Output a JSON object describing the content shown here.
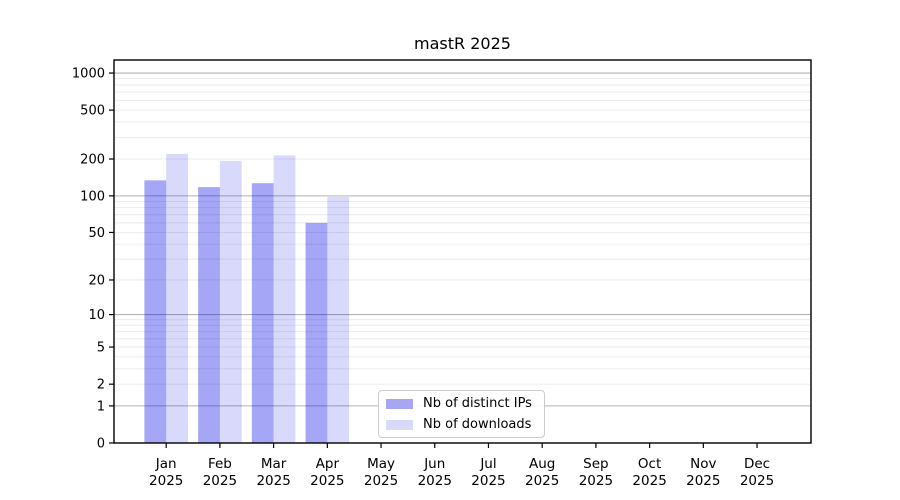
{
  "chart_data": {
    "type": "bar",
    "title": "mastR 2025",
    "y_scale": "log10(value+1)",
    "ylim": [
      0,
      1280
    ],
    "grid": true,
    "legend_position": "lower center",
    "y_ticks": [
      1000,
      500,
      200,
      100,
      50,
      20,
      10,
      5,
      2,
      1,
      0
    ],
    "y_major_gridlines": [
      1,
      10,
      100,
      1000
    ],
    "y_minor_gridlines": [
      2,
      3,
      4,
      5,
      6,
      7,
      8,
      9,
      20,
      30,
      40,
      50,
      60,
      70,
      80,
      90,
      200,
      300,
      400,
      500,
      600,
      700,
      800,
      900
    ],
    "x_tick_labels": [
      {
        "line1": "Jan",
        "line2": "2025"
      },
      {
        "line1": "Feb",
        "line2": "2025"
      },
      {
        "line1": "Mar",
        "line2": "2025"
      },
      {
        "line1": "Apr",
        "line2": "2025"
      },
      {
        "line1": "May",
        "line2": "2025"
      },
      {
        "line1": "Jun",
        "line2": "2025"
      },
      {
        "line1": "Jul",
        "line2": "2025"
      },
      {
        "line1": "Aug",
        "line2": "2025"
      },
      {
        "line1": "Sep",
        "line2": "2025"
      },
      {
        "line1": "Oct",
        "line2": "2025"
      },
      {
        "line1": "Nov",
        "line2": "2025"
      },
      {
        "line1": "Dec",
        "line2": "2025"
      }
    ],
    "series": [
      {
        "name": "Nb of distinct IPs",
        "slug": "distinct-ips",
        "fill": "rgba(0,0,230,0.35)",
        "legend_color": "#a6a6f4",
        "values": [
          134,
          118,
          127,
          60,
          null,
          null,
          null,
          null,
          null,
          null,
          null,
          null
        ]
      },
      {
        "name": "Nb of downloads",
        "slug": "downloads",
        "fill": "rgba(0,0,230,0.15)",
        "legend_color": "#d9d9fb",
        "values": [
          220,
          193,
          214,
          98,
          null,
          null,
          null,
          null,
          null,
          null,
          null,
          null
        ]
      }
    ],
    "colors": {
      "axis": "#000000",
      "text": "#000000",
      "grid_major": "#b3b3b3",
      "grid_minor": "#e9e9e9",
      "background": "#ffffff"
    }
  }
}
